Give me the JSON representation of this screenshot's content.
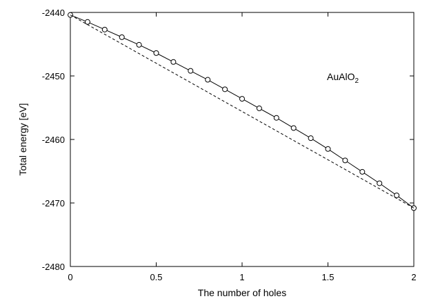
{
  "chart_data": {
    "type": "line",
    "xlabel": "The number of holes",
    "ylabel": "Total energy [eV]",
    "xlim": [
      0,
      2
    ],
    "ylim": [
      -2480,
      -2440
    ],
    "xticks": [
      "0",
      "0.5",
      "1",
      "1.5",
      "2"
    ],
    "yticks": [
      "-2440",
      "-2450",
      "-2460",
      "-2470",
      "-2480"
    ],
    "grid": false,
    "annotation": {
      "base": "AuAlO",
      "sub": "2"
    },
    "series": [
      {
        "style": "solid-with-open-circles",
        "x": [
          0,
          0.1,
          0.2,
          0.3,
          0.4,
          0.5,
          0.6,
          0.7,
          0.8,
          0.9,
          1.0,
          1.1,
          1.2,
          1.3,
          1.4,
          1.5,
          1.6,
          1.7,
          1.8,
          1.9,
          2.0
        ],
        "y": [
          -2440.4,
          -2441.5,
          -2442.7,
          -2443.9,
          -2445.1,
          -2446.4,
          -2447.8,
          -2449.2,
          -2450.6,
          -2452.1,
          -2453.6,
          -2455.1,
          -2456.6,
          -2458.2,
          -2459.8,
          -2461.5,
          -2463.3,
          -2465.1,
          -2466.9,
          -2468.8,
          -2470.8
        ]
      },
      {
        "style": "dashed",
        "x": [
          0,
          2
        ],
        "y": [
          -2440.4,
          -2470.8
        ]
      }
    ]
  }
}
